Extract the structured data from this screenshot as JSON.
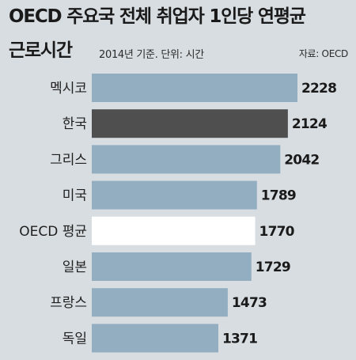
{
  "header": {
    "title_line1": "OECD 주요국 전체 취업자 1인당 연평균",
    "title_line2": "근로시간",
    "subtitle": "2014년 기준. 단위: 시간",
    "source": "자료: OECD"
  },
  "colors": {
    "background": "#d7dde1",
    "bar_default": "#93aec0",
    "bar_highlight": "#4f4f4f",
    "bar_oecd_average": "#ffffff"
  },
  "chart_data": {
    "type": "bar",
    "orientation": "horizontal",
    "categories": [
      "멕시코",
      "한국",
      "그리스",
      "미국",
      "OECD 평균",
      "일본",
      "프랑스",
      "독일"
    ],
    "values": [
      2228,
      2124,
      2042,
      1789,
      1770,
      1729,
      1473,
      1371
    ],
    "bar_styles": [
      "default",
      "highlight",
      "default",
      "default",
      "oecd_average",
      "default",
      "default",
      "default"
    ],
    "value_labels": [
      "2228",
      "2124",
      "2042",
      "1789",
      "1770",
      "1729",
      "1473",
      "1371"
    ],
    "unit": "시간",
    "grid": false,
    "legend": "none"
  }
}
